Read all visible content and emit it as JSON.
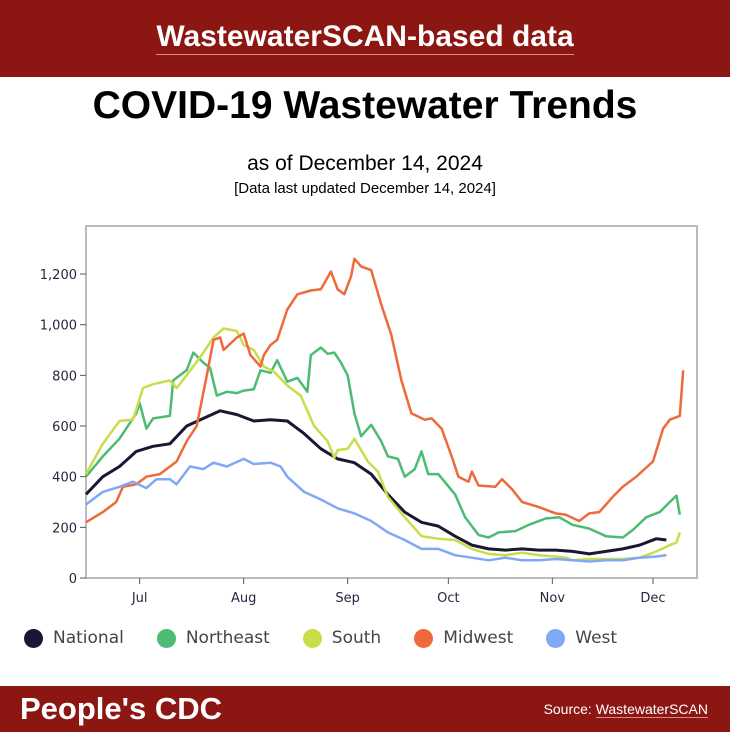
{
  "header": {
    "title": "WastewaterSCAN-based data"
  },
  "title": "COVID-19 Wastewater Trends",
  "subtitle": "as of December 14, 2024",
  "updated": "[Data last updated December 14, 2024]",
  "footer": {
    "brand": "People's CDC",
    "source_label": "Source:",
    "source_link": "WastewaterSCAN"
  },
  "colors": {
    "header_bg": "#8b1612",
    "national": "#1b1634",
    "northeast": "#4cbb74",
    "south": "#c9dc4a",
    "midwest": "#ee6a3a",
    "west": "#7fa8f5"
  },
  "chart_data": {
    "type": "line",
    "title": "",
    "xlabel": "",
    "ylabel": "",
    "xlim": [
      "2024-06-15",
      "2024-12-13"
    ],
    "ylim": [
      0,
      1400
    ],
    "yticks": [
      0,
      200,
      400,
      600,
      800,
      1000,
      1200
    ],
    "ytick_labels": [
      "0",
      "200",
      "400",
      "600",
      "800",
      "1,000",
      "1,200"
    ],
    "xticks": [
      "2024-07-01",
      "2024-08-01",
      "2024-09-01",
      "2024-10-01",
      "2024-11-01",
      "2024-12-01"
    ],
    "xtick_labels": [
      "Jul",
      "Aug",
      "Sep",
      "Oct",
      "Nov",
      "Dec"
    ],
    "grid": false,
    "legend": "bottom",
    "series": [
      {
        "name": "National",
        "color": "#1b1634",
        "points": [
          [
            "2024-06-15",
            330
          ],
          [
            "2024-06-20",
            400
          ],
          [
            "2024-06-25",
            440
          ],
          [
            "2024-06-30",
            500
          ],
          [
            "2024-07-05",
            520
          ],
          [
            "2024-07-10",
            530
          ],
          [
            "2024-07-15",
            600
          ],
          [
            "2024-07-20",
            630
          ],
          [
            "2024-07-25",
            660
          ],
          [
            "2024-07-30",
            645
          ],
          [
            "2024-08-04",
            620
          ],
          [
            "2024-08-09",
            625
          ],
          [
            "2024-08-14",
            620
          ],
          [
            "2024-08-19",
            570
          ],
          [
            "2024-08-24",
            510
          ],
          [
            "2024-08-29",
            470
          ],
          [
            "2024-09-03",
            455
          ],
          [
            "2024-09-08",
            410
          ],
          [
            "2024-09-13",
            330
          ],
          [
            "2024-09-18",
            260
          ],
          [
            "2024-09-23",
            220
          ],
          [
            "2024-09-28",
            205
          ],
          [
            "2024-10-03",
            165
          ],
          [
            "2024-10-08",
            130
          ],
          [
            "2024-10-13",
            115
          ],
          [
            "2024-10-18",
            110
          ],
          [
            "2024-10-23",
            115
          ],
          [
            "2024-10-28",
            110
          ],
          [
            "2024-11-02",
            110
          ],
          [
            "2024-11-07",
            105
          ],
          [
            "2024-11-12",
            95
          ],
          [
            "2024-11-17",
            105
          ],
          [
            "2024-11-22",
            115
          ],
          [
            "2024-11-27",
            130
          ],
          [
            "2024-12-02",
            155
          ],
          [
            "2024-12-05",
            150
          ]
        ]
      },
      {
        "name": "Northeast",
        "color": "#4cbb74",
        "points": [
          [
            "2024-06-15",
            400
          ],
          [
            "2024-06-20",
            480
          ],
          [
            "2024-06-25",
            550
          ],
          [
            "2024-06-30",
            650
          ],
          [
            "2024-07-01",
            690
          ],
          [
            "2024-07-03",
            590
          ],
          [
            "2024-07-05",
            630
          ],
          [
            "2024-07-10",
            640
          ],
          [
            "2024-07-11",
            780
          ],
          [
            "2024-07-15",
            820
          ],
          [
            "2024-07-17",
            890
          ],
          [
            "2024-07-20",
            850
          ],
          [
            "2024-07-22",
            830
          ],
          [
            "2024-07-24",
            720
          ],
          [
            "2024-07-27",
            735
          ],
          [
            "2024-07-30",
            730
          ],
          [
            "2024-08-01",
            740
          ],
          [
            "2024-08-04",
            745
          ],
          [
            "2024-08-06",
            820
          ],
          [
            "2024-08-09",
            810
          ],
          [
            "2024-08-11",
            860
          ],
          [
            "2024-08-14",
            775
          ],
          [
            "2024-08-17",
            790
          ],
          [
            "2024-08-20",
            735
          ],
          [
            "2024-08-21",
            880
          ],
          [
            "2024-08-24",
            910
          ],
          [
            "2024-08-26",
            885
          ],
          [
            "2024-08-28",
            890
          ],
          [
            "2024-08-30",
            850
          ],
          [
            "2024-09-01",
            800
          ],
          [
            "2024-09-03",
            650
          ],
          [
            "2024-09-05",
            560
          ],
          [
            "2024-09-08",
            605
          ],
          [
            "2024-09-11",
            540
          ],
          [
            "2024-09-13",
            480
          ],
          [
            "2024-09-16",
            470
          ],
          [
            "2024-09-18",
            400
          ],
          [
            "2024-09-21",
            430
          ],
          [
            "2024-09-23",
            500
          ],
          [
            "2024-09-25",
            410
          ],
          [
            "2024-09-28",
            410
          ],
          [
            "2024-10-03",
            330
          ],
          [
            "2024-10-06",
            240
          ],
          [
            "2024-10-10",
            170
          ],
          [
            "2024-10-13",
            160
          ],
          [
            "2024-10-16",
            180
          ],
          [
            "2024-10-21",
            185
          ],
          [
            "2024-10-25",
            210
          ],
          [
            "2024-10-30",
            235
          ],
          [
            "2024-11-03",
            240
          ],
          [
            "2024-11-07",
            210
          ],
          [
            "2024-11-12",
            195
          ],
          [
            "2024-11-17",
            165
          ],
          [
            "2024-11-22",
            160
          ],
          [
            "2024-11-25",
            190
          ],
          [
            "2024-11-29",
            240
          ],
          [
            "2024-12-03",
            260
          ],
          [
            "2024-12-06",
            300
          ],
          [
            "2024-12-08",
            325
          ],
          [
            "2024-12-09",
            250
          ]
        ]
      },
      {
        "name": "South",
        "color": "#c9dc4a",
        "points": [
          [
            "2024-06-15",
            410
          ],
          [
            "2024-06-20",
            530
          ],
          [
            "2024-06-25",
            620
          ],
          [
            "2024-06-29",
            625
          ],
          [
            "2024-07-02",
            750
          ],
          [
            "2024-07-05",
            765
          ],
          [
            "2024-07-10",
            780
          ],
          [
            "2024-07-12",
            750
          ],
          [
            "2024-07-15",
            800
          ],
          [
            "2024-07-20",
            890
          ],
          [
            "2024-07-23",
            950
          ],
          [
            "2024-07-26",
            985
          ],
          [
            "2024-07-30",
            975
          ],
          [
            "2024-08-01",
            920
          ],
          [
            "2024-08-04",
            900
          ],
          [
            "2024-08-07",
            835
          ],
          [
            "2024-08-10",
            815
          ],
          [
            "2024-08-14",
            760
          ],
          [
            "2024-08-18",
            720
          ],
          [
            "2024-08-22",
            600
          ],
          [
            "2024-08-26",
            540
          ],
          [
            "2024-08-28",
            475
          ],
          [
            "2024-08-29",
            505
          ],
          [
            "2024-09-01",
            510
          ],
          [
            "2024-09-03",
            550
          ],
          [
            "2024-09-07",
            460
          ],
          [
            "2024-09-10",
            420
          ],
          [
            "2024-09-13",
            320
          ],
          [
            "2024-09-18",
            240
          ],
          [
            "2024-09-23",
            165
          ],
          [
            "2024-09-28",
            155
          ],
          [
            "2024-10-03",
            150
          ],
          [
            "2024-10-08",
            115
          ],
          [
            "2024-10-13",
            95
          ],
          [
            "2024-10-18",
            90
          ],
          [
            "2024-10-23",
            100
          ],
          [
            "2024-10-28",
            90
          ],
          [
            "2024-11-02",
            85
          ],
          [
            "2024-11-05",
            80
          ],
          [
            "2024-11-07",
            70
          ],
          [
            "2024-11-12",
            75
          ],
          [
            "2024-11-17",
            75
          ],
          [
            "2024-11-22",
            75
          ],
          [
            "2024-11-27",
            80
          ],
          [
            "2024-12-02",
            105
          ],
          [
            "2024-12-06",
            130
          ],
          [
            "2024-12-08",
            140
          ],
          [
            "2024-12-09",
            180
          ]
        ]
      },
      {
        "name": "Midwest",
        "color": "#ee6a3a",
        "points": [
          [
            "2024-06-15",
            220
          ],
          [
            "2024-06-20",
            260
          ],
          [
            "2024-06-24",
            300
          ],
          [
            "2024-06-26",
            360
          ],
          [
            "2024-06-30",
            370
          ],
          [
            "2024-07-03",
            400
          ],
          [
            "2024-07-07",
            410
          ],
          [
            "2024-07-12",
            460
          ],
          [
            "2024-07-15",
            540
          ],
          [
            "2024-07-18",
            600
          ],
          [
            "2024-07-21",
            800
          ],
          [
            "2024-07-23",
            940
          ],
          [
            "2024-07-25",
            950
          ],
          [
            "2024-07-26",
            900
          ],
          [
            "2024-07-30",
            950
          ],
          [
            "2024-08-01",
            965
          ],
          [
            "2024-08-03",
            880
          ],
          [
            "2024-08-06",
            835
          ],
          [
            "2024-08-07",
            880
          ],
          [
            "2024-08-09",
            920
          ],
          [
            "2024-08-11",
            940
          ],
          [
            "2024-08-14",
            1060
          ],
          [
            "2024-08-17",
            1120
          ],
          [
            "2024-08-21",
            1135
          ],
          [
            "2024-08-24",
            1140
          ],
          [
            "2024-08-27",
            1210
          ],
          [
            "2024-08-29",
            1140
          ],
          [
            "2024-08-31",
            1120
          ],
          [
            "2024-09-02",
            1190
          ],
          [
            "2024-09-03",
            1260
          ],
          [
            "2024-09-05",
            1230
          ],
          [
            "2024-09-08",
            1215
          ],
          [
            "2024-09-11",
            1080
          ],
          [
            "2024-09-14",
            960
          ],
          [
            "2024-09-17",
            780
          ],
          [
            "2024-09-20",
            650
          ],
          [
            "2024-09-24",
            625
          ],
          [
            "2024-09-26",
            630
          ],
          [
            "2024-09-29",
            590
          ],
          [
            "2024-10-02",
            480
          ],
          [
            "2024-10-04",
            400
          ],
          [
            "2024-10-07",
            380
          ],
          [
            "2024-10-08",
            420
          ],
          [
            "2024-10-10",
            365
          ],
          [
            "2024-10-15",
            360
          ],
          [
            "2024-10-17",
            390
          ],
          [
            "2024-10-20",
            350
          ],
          [
            "2024-10-23",
            300
          ],
          [
            "2024-10-28",
            280
          ],
          [
            "2024-11-02",
            255
          ],
          [
            "2024-11-05",
            250
          ],
          [
            "2024-11-09",
            225
          ],
          [
            "2024-11-12",
            255
          ],
          [
            "2024-11-15",
            260
          ],
          [
            "2024-11-19",
            320
          ],
          [
            "2024-11-22",
            360
          ],
          [
            "2024-11-26",
            400
          ],
          [
            "2024-12-01",
            460
          ],
          [
            "2024-12-04",
            590
          ],
          [
            "2024-12-06",
            625
          ],
          [
            "2024-12-09",
            640
          ],
          [
            "2024-12-10",
            820
          ]
        ]
      },
      {
        "name": "West",
        "color": "#7fa8f5",
        "points": [
          [
            "2024-06-15",
            290
          ],
          [
            "2024-06-20",
            340
          ],
          [
            "2024-06-25",
            360
          ],
          [
            "2024-06-29",
            380
          ],
          [
            "2024-07-03",
            355
          ],
          [
            "2024-07-06",
            390
          ],
          [
            "2024-07-10",
            390
          ],
          [
            "2024-07-12",
            370
          ],
          [
            "2024-07-16",
            440
          ],
          [
            "2024-07-20",
            430
          ],
          [
            "2024-07-23",
            455
          ],
          [
            "2024-07-27",
            440
          ],
          [
            "2024-08-01",
            470
          ],
          [
            "2024-08-04",
            450
          ],
          [
            "2024-08-09",
            455
          ],
          [
            "2024-08-12",
            440
          ],
          [
            "2024-08-14",
            400
          ],
          [
            "2024-08-19",
            340
          ],
          [
            "2024-08-24",
            310
          ],
          [
            "2024-08-29",
            275
          ],
          [
            "2024-09-03",
            255
          ],
          [
            "2024-09-08",
            225
          ],
          [
            "2024-09-13",
            180
          ],
          [
            "2024-09-18",
            150
          ],
          [
            "2024-09-23",
            115
          ],
          [
            "2024-09-28",
            115
          ],
          [
            "2024-10-03",
            90
          ],
          [
            "2024-10-08",
            80
          ],
          [
            "2024-10-13",
            70
          ],
          [
            "2024-10-18",
            80
          ],
          [
            "2024-10-23",
            70
          ],
          [
            "2024-10-28",
            70
          ],
          [
            "2024-11-02",
            75
          ],
          [
            "2024-11-07",
            70
          ],
          [
            "2024-11-12",
            65
          ],
          [
            "2024-11-17",
            70
          ],
          [
            "2024-11-22",
            70
          ],
          [
            "2024-11-27",
            80
          ],
          [
            "2024-12-02",
            85
          ],
          [
            "2024-12-05",
            90
          ]
        ]
      }
    ]
  }
}
